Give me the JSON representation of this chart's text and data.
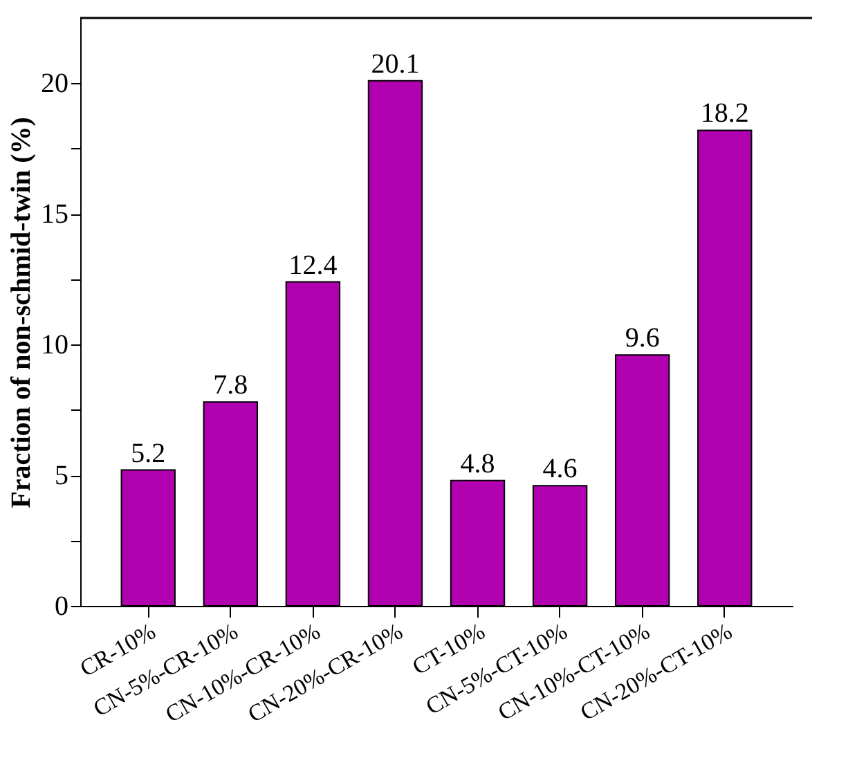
{
  "chart_data": {
    "type": "bar",
    "ylabel": "Fraction of non-schmid-twin (%)",
    "categories": [
      "CR-10%",
      "CN-5%-CR-10%",
      "CN-10%-CR-10%",
      "CN-20%-CR-10%",
      "CT-10%",
      "CN-5%-CT-10%",
      "CN-10%-CT-10%",
      "CN-20%-CT-10%"
    ],
    "values": [
      5.2,
      7.8,
      12.4,
      20.1,
      4.8,
      4.6,
      9.6,
      18.2
    ],
    "color": "#b000b0",
    "ylim": [
      0,
      22.5
    ],
    "yticks": [
      0,
      {
        "value": 2.5,
        "label": null
      },
      5,
      {
        "value": 7.5,
        "label": null
      },
      10,
      {
        "value": 12.5,
        "label": null
      },
      15,
      {
        "value": 17.5,
        "label": null
      },
      20
    ],
    "data_labels": true,
    "grid": false
  }
}
